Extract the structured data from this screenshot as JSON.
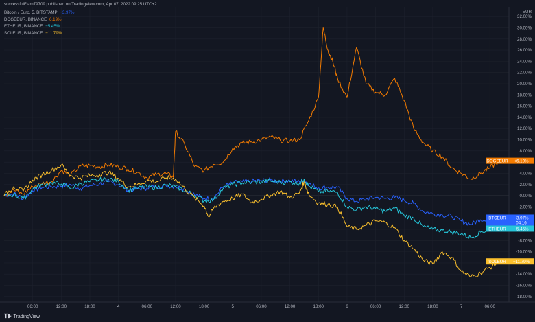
{
  "header": {
    "publisher_line": "successfulFlam79709 published on TradingView.com, Apr 07, 2022 09:25 UTC+2"
  },
  "footer": {
    "brand": "TradingView",
    "logo_icon": "tradingview-logo-icon"
  },
  "colors": {
    "background": "#131722",
    "grid": "#1e222d",
    "zero_line": "#363a45",
    "axis_text": "#b2b5be"
  },
  "chart_data": {
    "type": "line",
    "title": "",
    "xlabel": "",
    "ylabel": "",
    "y_unit": "%",
    "currency_label": "EUR",
    "ylim": [
      -19,
      33
    ],
    "grid": true,
    "legend_placement": "top-left",
    "yticks": [
      "32.00%",
      "30.00%",
      "28.00%",
      "26.00%",
      "24.00%",
      "22.00%",
      "20.00%",
      "18.00%",
      "16.00%",
      "14.00%",
      "12.00%",
      "10.00%",
      "8.00%",
      "6.00%",
      "4.00%",
      "2.00%",
      "0.00%",
      "-2.00%",
      "-4.00%",
      "-6.00%",
      "-8.00%",
      "-10.00%",
      "-12.00%",
      "-14.00%",
      "-16.00%",
      "-18.00%"
    ],
    "xtick_labels": [
      "06:00",
      "12:00",
      "18:00",
      "4",
      "06:00",
      "12:00",
      "18:00",
      "5",
      "06:00",
      "12:00",
      "18:00",
      "6",
      "06:00",
      "12:00",
      "18:00",
      "7",
      "06:00"
    ],
    "xtick_hours": [
      6,
      12,
      18,
      24,
      30,
      36,
      42,
      48,
      54,
      60,
      66,
      72,
      78,
      84,
      90,
      96,
      102
    ],
    "x_range_hours": [
      0,
      106
    ],
    "series": [
      {
        "name": "Bitcoin / Euro, 5, BITSTAMP",
        "symbol": "BTCEUR",
        "last_change": "−3.97%",
        "color": "#2962ff",
        "extra_label": "04:16",
        "points": [
          [
            0,
            0
          ],
          [
            2,
            0.4
          ],
          [
            4,
            -0.5
          ],
          [
            6,
            0.9
          ],
          [
            8,
            1.5
          ],
          [
            10,
            1.6
          ],
          [
            12,
            1.7
          ],
          [
            14,
            2.0
          ],
          [
            16,
            1.3
          ],
          [
            18,
            1.8
          ],
          [
            20,
            2.1
          ],
          [
            22,
            2.5
          ],
          [
            24,
            2.0
          ],
          [
            26,
            1.0
          ],
          [
            28,
            1.2
          ],
          [
            30,
            1.4
          ],
          [
            32,
            1.6
          ],
          [
            34,
            1.8
          ],
          [
            36,
            1.7
          ],
          [
            38,
            1.1
          ],
          [
            40,
            0.2
          ],
          [
            42,
            -0.5
          ],
          [
            44,
            -0.4
          ],
          [
            46,
            1.6
          ],
          [
            48,
            2.3
          ],
          [
            50,
            2.5
          ],
          [
            52,
            2.6
          ],
          [
            54,
            2.7
          ],
          [
            56,
            2.8
          ],
          [
            58,
            2.6
          ],
          [
            60,
            2.7
          ],
          [
            62,
            2.5
          ],
          [
            63,
            2.8
          ],
          [
            64,
            2.1
          ],
          [
            66,
            1.4
          ],
          [
            68,
            1.5
          ],
          [
            70,
            1.5
          ],
          [
            72,
            -0.5
          ],
          [
            74,
            -1.0
          ],
          [
            76,
            -0.6
          ],
          [
            78,
            -0.3
          ],
          [
            80,
            -0.5
          ],
          [
            82,
            -0.3
          ],
          [
            84,
            -0.8
          ],
          [
            86,
            -1.4
          ],
          [
            88,
            -2.8
          ],
          [
            90,
            -3.2
          ],
          [
            92,
            -3.4
          ],
          [
            94,
            -3.7
          ],
          [
            96,
            -4.5
          ],
          [
            98,
            -5.1
          ],
          [
            100,
            -4.3
          ],
          [
            102,
            -4.0
          ],
          [
            104,
            -3.97
          ]
        ]
      },
      {
        "name": "DOGEEUR, BINANCE",
        "symbol": "DOGEEUR",
        "last_change": "6.19%",
        "tag_change": "+6.19%",
        "color": "#f57c00",
        "points": [
          [
            0,
            0
          ],
          [
            2,
            1.0
          ],
          [
            4,
            0.3
          ],
          [
            6,
            1.6
          ],
          [
            8,
            2.2
          ],
          [
            10,
            2.6
          ],
          [
            12,
            4.5
          ],
          [
            14,
            3.7
          ],
          [
            16,
            5.3
          ],
          [
            18,
            5.4
          ],
          [
            20,
            5.2
          ],
          [
            22,
            5.5
          ],
          [
            24,
            5.2
          ],
          [
            26,
            4.8
          ],
          [
            28,
            4.2
          ],
          [
            30,
            3.2
          ],
          [
            32,
            3.8
          ],
          [
            34,
            4.0
          ],
          [
            35.5,
            3.3
          ],
          [
            36,
            11.5
          ],
          [
            38,
            9.0
          ],
          [
            40,
            5.2
          ],
          [
            42,
            4.5
          ],
          [
            44,
            5.6
          ],
          [
            46,
            6.0
          ],
          [
            48,
            8.5
          ],
          [
            50,
            9.4
          ],
          [
            52,
            9.6
          ],
          [
            54,
            10.0
          ],
          [
            56,
            10.5
          ],
          [
            58,
            9.9
          ],
          [
            60,
            9.8
          ],
          [
            62,
            10.0
          ],
          [
            64,
            13.5
          ],
          [
            66,
            17.5
          ],
          [
            67,
            30.0
          ],
          [
            68,
            26.0
          ],
          [
            69,
            24.0
          ],
          [
            70,
            21.0
          ],
          [
            72,
            17.5
          ],
          [
            74,
            26.5
          ],
          [
            76,
            20.0
          ],
          [
            78,
            18.5
          ],
          [
            80,
            18.0
          ],
          [
            82,
            21.0
          ],
          [
            84,
            17.0
          ],
          [
            86,
            12.0
          ],
          [
            88,
            9.5
          ],
          [
            90,
            8.0
          ],
          [
            92,
            7.0
          ],
          [
            94,
            5.0
          ],
          [
            96,
            4.0
          ],
          [
            98,
            3.0
          ],
          [
            100,
            4.0
          ],
          [
            102,
            5.0
          ],
          [
            104,
            6.19
          ]
        ]
      },
      {
        "name": "ETHEUR, BINANCE",
        "symbol": "ETHEUR",
        "last_change": "−5.45%",
        "color": "#26c6da",
        "points": [
          [
            0,
            0
          ],
          [
            2,
            0.2
          ],
          [
            4,
            -0.6
          ],
          [
            6,
            1.2
          ],
          [
            8,
            2.0
          ],
          [
            10,
            2.3
          ],
          [
            12,
            2.1
          ],
          [
            14,
            1.3
          ],
          [
            16,
            2.2
          ],
          [
            18,
            2.5
          ],
          [
            20,
            2.8
          ],
          [
            22,
            3.0
          ],
          [
            24,
            2.6
          ],
          [
            26,
            1.0
          ],
          [
            28,
            1.3
          ],
          [
            30,
            1.6
          ],
          [
            32,
            1.4
          ],
          [
            34,
            1.9
          ],
          [
            36,
            1.6
          ],
          [
            38,
            0.9
          ],
          [
            40,
            0.1
          ],
          [
            42,
            -0.9
          ],
          [
            44,
            -0.7
          ],
          [
            46,
            1.3
          ],
          [
            48,
            2.0
          ],
          [
            50,
            2.3
          ],
          [
            52,
            2.4
          ],
          [
            54,
            2.5
          ],
          [
            56,
            2.6
          ],
          [
            58,
            2.4
          ],
          [
            60,
            2.5
          ],
          [
            62,
            2.2
          ],
          [
            63,
            3.0
          ],
          [
            64,
            1.7
          ],
          [
            66,
            0.7
          ],
          [
            68,
            0.8
          ],
          [
            70,
            0.6
          ],
          [
            72,
            -2.0
          ],
          [
            74,
            -2.5
          ],
          [
            76,
            -2.0
          ],
          [
            78,
            -2.3
          ],
          [
            80,
            -2.8
          ],
          [
            82,
            -2.2
          ],
          [
            84,
            -3.5
          ],
          [
            86,
            -4.0
          ],
          [
            88,
            -5.5
          ],
          [
            90,
            -6.0
          ],
          [
            92,
            -6.2
          ],
          [
            94,
            -6.5
          ],
          [
            96,
            -6.8
          ],
          [
            98,
            -7.5
          ],
          [
            100,
            -6.5
          ],
          [
            102,
            -6.0
          ],
          [
            104,
            -5.45
          ]
        ]
      },
      {
        "name": "SOLEUR, BINANCE",
        "symbol": "SOLEUR",
        "last_change": "−11.79%",
        "color": "#fbc02d",
        "points": [
          [
            0,
            0
          ],
          [
            2,
            1.6
          ],
          [
            4,
            0.8
          ],
          [
            6,
            2.8
          ],
          [
            8,
            3.8
          ],
          [
            10,
            4.6
          ],
          [
            12,
            5.5
          ],
          [
            14,
            3.6
          ],
          [
            16,
            3.2
          ],
          [
            18,
            3.6
          ],
          [
            20,
            3.8
          ],
          [
            22,
            4.2
          ],
          [
            24,
            3.1
          ],
          [
            26,
            1.6
          ],
          [
            28,
            2.0
          ],
          [
            30,
            2.7
          ],
          [
            32,
            2.5
          ],
          [
            34,
            3.2
          ],
          [
            36,
            3.0
          ],
          [
            38,
            1.2
          ],
          [
            40,
            -0.4
          ],
          [
            42,
            -1.8
          ],
          [
            43,
            -3.8
          ],
          [
            44,
            -2.2
          ],
          [
            46,
            -1.0
          ],
          [
            48,
            -0.5
          ],
          [
            50,
            0.3
          ],
          [
            52,
            -1.2
          ],
          [
            54,
            -0.6
          ],
          [
            56,
            0.1
          ],
          [
            58,
            0.8
          ],
          [
            60,
            -0.3
          ],
          [
            62,
            0.5
          ],
          [
            63,
            2.5
          ],
          [
            64,
            0.2
          ],
          [
            66,
            -1.3
          ],
          [
            68,
            -1.5
          ],
          [
            70,
            -2.0
          ],
          [
            72,
            -5.5
          ],
          [
            74,
            -6.0
          ],
          [
            76,
            -5.3
          ],
          [
            78,
            -4.5
          ],
          [
            80,
            -4.8
          ],
          [
            82,
            -5.7
          ],
          [
            84,
            -8.0
          ],
          [
            86,
            -9.5
          ],
          [
            88,
            -11.5
          ],
          [
            90,
            -12.2
          ],
          [
            92,
            -10.0
          ],
          [
            94,
            -11.0
          ],
          [
            96,
            -13.5
          ],
          [
            98,
            -14.5
          ],
          [
            100,
            -13.8
          ],
          [
            102,
            -12.8
          ],
          [
            104,
            -11.79
          ]
        ]
      }
    ]
  }
}
